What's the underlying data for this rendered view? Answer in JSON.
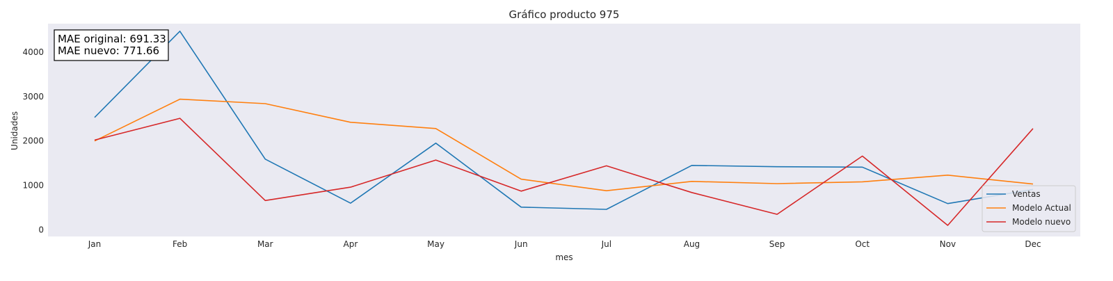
{
  "chart_data": {
    "type": "line",
    "title": "Gráfico producto 975",
    "xlabel": "mes",
    "ylabel": "Unidades",
    "categories": [
      "Jan",
      "Feb",
      "Mar",
      "Apr",
      "May",
      "Jun",
      "Jul",
      "Aug",
      "Sep",
      "Oct",
      "Nov",
      "Dec"
    ],
    "yticks": [
      0,
      1000,
      2000,
      3000,
      4000
    ],
    "ylim": [
      -150,
      4640
    ],
    "grid": false,
    "legend_position": "lower right",
    "series": [
      {
        "name": "Ventas",
        "color": "#1f77b4",
        "values": [
          2530,
          4470,
          1590,
          600,
          1950,
          510,
          460,
          1450,
          1420,
          1410,
          590,
          910
        ]
      },
      {
        "name": "Modelo Actual",
        "color": "#ff7f0e",
        "values": [
          2000,
          2940,
          2840,
          2420,
          2280,
          1140,
          880,
          1090,
          1040,
          1080,
          1230,
          1030
        ]
      },
      {
        "name": "Modelo nuevo",
        "color": "#d62728",
        "values": [
          2020,
          2510,
          660,
          960,
          1570,
          870,
          1440,
          840,
          350,
          1660,
          100,
          2280
        ]
      }
    ],
    "annotation": [
      "MAE original: 691.33",
      "MAE nuevo: 771.66"
    ]
  }
}
